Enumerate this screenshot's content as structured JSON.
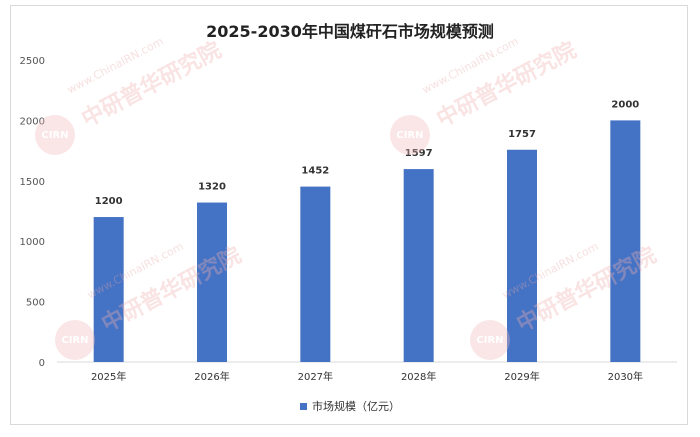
{
  "chart_data": {
    "type": "bar",
    "title": "2025-2030年中国煤矸石市场规模预测",
    "categories": [
      "2025年",
      "2026年",
      "2027年",
      "2028年",
      "2029年",
      "2030年"
    ],
    "series": [
      {
        "name": "市场规模（亿元）",
        "values": [
          1200,
          1320,
          1452,
          1597,
          1757,
          2000
        ]
      }
    ],
    "yticks": [
      "0",
      "500",
      "1000",
      "1500",
      "2000",
      "2500"
    ],
    "ylim": [
      0,
      2500
    ],
    "grid": false,
    "legend_position": "bottom",
    "bar_color": "#4472c4"
  },
  "watermark": {
    "url": "www.ChinaIRN.com",
    "org": "中研普华研究院",
    "logo": "CIRN"
  }
}
